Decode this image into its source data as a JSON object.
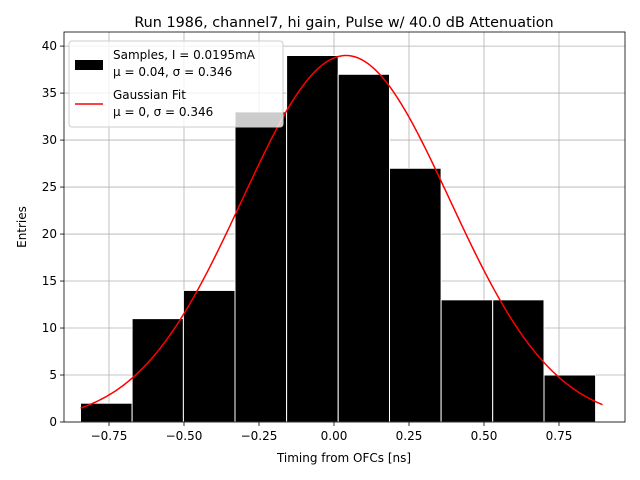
{
  "chart_data": {
    "type": "bar",
    "title": "Run 1986, channel7, hi gain, Pulse w/ 40.0 dB Attenuation",
    "xlabel": "Timing from OFCs [ns]",
    "ylabel": "Entries",
    "xlim": [
      -0.9,
      0.97
    ],
    "ylim": [
      0,
      41.5
    ],
    "grid": true,
    "legend_position": "top-left",
    "x_ticks": [
      -0.75,
      -0.5,
      -0.25,
      0.0,
      0.25,
      0.5,
      0.75
    ],
    "x_tick_labels": [
      "−0.75",
      "−0.50",
      "−0.25",
      "0.00",
      "0.25",
      "0.50",
      "0.75"
    ],
    "y_ticks": [
      0,
      5,
      10,
      15,
      20,
      25,
      30,
      35,
      40
    ],
    "y_tick_labels": [
      "0",
      "5",
      "10",
      "15",
      "20",
      "25",
      "30",
      "35",
      "40"
    ],
    "bin_edges": [
      -0.845,
      -0.673,
      -0.502,
      -0.33,
      -0.158,
      0.014,
      0.185,
      0.357,
      0.529,
      0.7,
      0.872
    ],
    "histogram": {
      "name": "Samples, I = 0.0195mA",
      "name_line2": "μ = 0.04, σ = 0.346",
      "counts": [
        2,
        11,
        14,
        33,
        39,
        37,
        27,
        13,
        13,
        5
      ],
      "color": "#000000",
      "edgecolor": "#ffffff"
    },
    "fit": {
      "name": "Gaussian Fit",
      "name_line2": "μ = 0, σ = 0.346",
      "mu": 0.04,
      "sigma": 0.346,
      "amplitude": 39.0,
      "x_range": [
        -0.845,
        0.895
      ],
      "color": "#ff0000"
    }
  }
}
